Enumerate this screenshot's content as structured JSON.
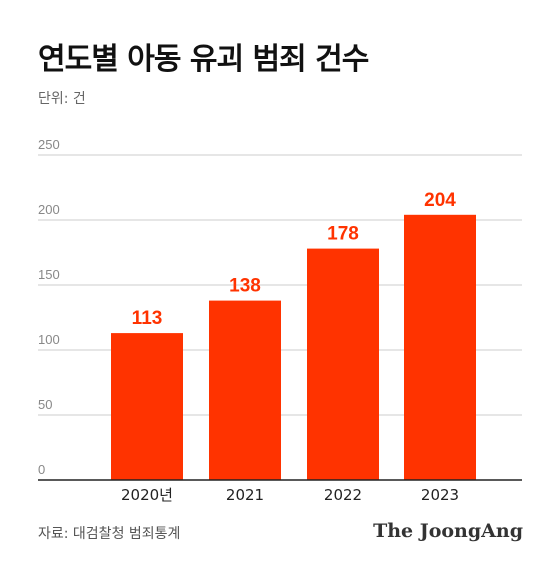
{
  "title": "연도별 아동 유괴 범죄 건수",
  "unit_label": "단위: 건",
  "source": "자료: 대검찰청 범죄통계",
  "logo_text": "The JoongAng",
  "colors": {
    "bar": "#ff3300",
    "value_label": "#ff3300",
    "grid": "#cccccc",
    "axis": "#222222",
    "tick": "#888888"
  },
  "chart_data": {
    "type": "bar",
    "title": "연도별 아동 유괴 범죄 건수",
    "xlabel": "",
    "ylabel": "",
    "unit": "건",
    "categories": [
      "2020년",
      "2021",
      "2022",
      "2023"
    ],
    "values": [
      113,
      138,
      178,
      204
    ],
    "data_labels": [
      "113",
      "138",
      "178",
      "204"
    ],
    "ylim": [
      0,
      250
    ],
    "yticks": [
      0,
      50,
      100,
      150,
      200,
      250
    ],
    "grid": true,
    "legend": "none"
  }
}
